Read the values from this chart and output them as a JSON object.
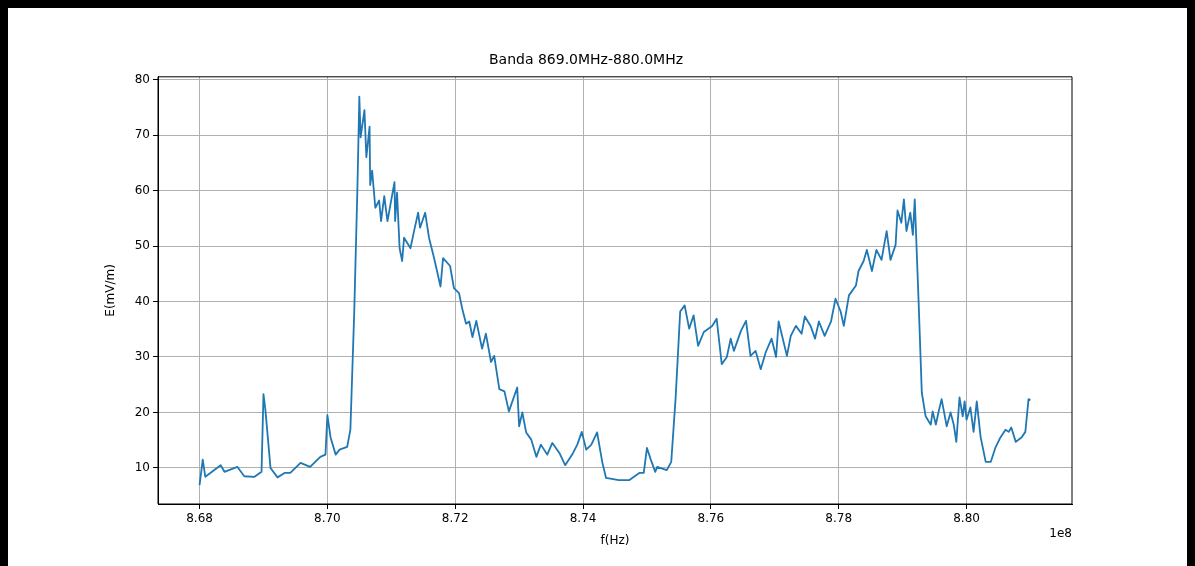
{
  "chart_data": {
    "type": "line",
    "title": "Banda 869.0MHz-880.0MHz",
    "xlabel": "f(Hz)",
    "ylabel": "E(mV/m)",
    "annotations": [
      "1e8"
    ],
    "xlim": [
      8.6735,
      8.8165
    ],
    "ylim": [
      3.5,
      80.5
    ],
    "xticks": [
      {
        "value": 8.68,
        "label": "8.68"
      },
      {
        "value": 8.7,
        "label": "8.70"
      },
      {
        "value": 8.72,
        "label": "8.72"
      },
      {
        "value": 8.74,
        "label": "8.74"
      },
      {
        "value": 8.76,
        "label": "8.76"
      },
      {
        "value": 8.78,
        "label": "8.78"
      },
      {
        "value": 8.8,
        "label": "8.80"
      }
    ],
    "yticks": [
      10,
      20,
      30,
      40,
      50,
      60,
      70,
      80
    ],
    "grid": true,
    "marker": "none",
    "line_style": "solid",
    "x": [
      8.68,
      8.6805,
      8.6809,
      8.6833,
      8.6839,
      8.6859,
      8.687,
      8.6886,
      8.6897,
      8.69,
      8.6903,
      8.6911,
      8.6922,
      8.6933,
      8.6942,
      8.6958,
      8.6973,
      8.6989,
      8.6997,
      8.7,
      8.7005,
      8.7013,
      8.7019,
      8.7031,
      8.7036,
      8.7042,
      8.7047,
      8.705,
      8.7052,
      8.7058,
      8.7061,
      8.7066,
      8.7067,
      8.707,
      8.7075,
      8.7081,
      8.7084,
      8.7089,
      8.7094,
      8.7105,
      8.7106,
      8.7109,
      8.7113,
      8.7117,
      8.712,
      8.713,
      8.7136,
      8.7142,
      8.7145,
      8.7153,
      8.7159,
      8.7167,
      8.7177,
      8.7181,
      8.7192,
      8.7198,
      8.7206,
      8.7211,
      8.7217,
      8.7222,
      8.7227,
      8.7233,
      8.7242,
      8.7248,
      8.7256,
      8.7261,
      8.7269,
      8.7277,
      8.7284,
      8.7297,
      8.73,
      8.7305,
      8.7311,
      8.7319,
      8.7327,
      8.7334,
      8.7344,
      8.7352,
      8.7363,
      8.7372,
      8.7383,
      8.7391,
      8.7398,
      8.7405,
      8.7413,
      8.7422,
      8.743,
      8.7436,
      8.7456,
      8.7472,
      8.7488,
      8.7495,
      8.75,
      8.7506,
      8.7513,
      8.7516,
      8.7531,
      8.7538,
      8.7545,
      8.7552,
      8.7559,
      8.7566,
      8.7573,
      8.758,
      8.7589,
      8.7602,
      8.7609,
      8.7617,
      8.7625,
      8.7631,
      8.7636,
      8.7647,
      8.7655,
      8.7662,
      8.767,
      8.7678,
      8.7686,
      8.7695,
      8.7702,
      8.7706,
      8.7719,
      8.7725,
      8.7733,
      8.7742,
      8.7747,
      8.7756,
      8.7763,
      8.7769,
      8.7778,
      8.7788,
      8.7795,
      8.7803,
      8.7808,
      8.7816,
      8.7827,
      8.7831,
      8.7839,
      8.7844,
      8.7852,
      8.7859,
      8.7867,
      8.7875,
      8.7881,
      8.7889,
      8.7892,
      8.7898,
      8.7902,
      8.7906,
      8.7912,
      8.7916,
      8.7919,
      8.7925,
      8.793,
      8.7936,
      8.7944,
      8.7947,
      8.7952,
      8.7956,
      8.7961,
      8.7969,
      8.7975,
      8.798,
      8.7984,
      8.7989,
      8.7994,
      8.7997,
      8.8,
      8.8006,
      8.8011,
      8.8016,
      8.8022,
      8.803,
      8.8038,
      8.8045,
      8.8053,
      8.8061,
      8.8066,
      8.807,
      8.8077,
      8.8086,
      8.8092,
      8.8097,
      8.81
    ],
    "series": [
      {
        "color": "#1f77b4",
        "values": [
          6.9,
          11.5,
          8.4,
          10.5,
          9.3,
          10.2,
          8.5,
          8.4,
          9.3,
          23.3,
          20.5,
          10.0,
          8.3,
          9.1,
          9.1,
          10.9,
          10.2,
          12.0,
          12.4,
          19.5,
          15.5,
          12.4,
          13.3,
          13.8,
          16.9,
          38.0,
          60.5,
          76.9,
          69.6,
          74.5,
          66.0,
          71.5,
          61.0,
          63.6,
          56.9,
          58.2,
          54.5,
          59.0,
          54.5,
          61.5,
          54.5,
          59.6,
          49.6,
          47.3,
          51.5,
          49.6,
          52.9,
          56.0,
          53.3,
          56.0,
          51.5,
          47.8,
          42.7,
          47.8,
          46.4,
          42.4,
          41.5,
          38.7,
          36.0,
          36.4,
          33.6,
          36.5,
          31.5,
          34.2,
          29.1,
          30.2,
          24.2,
          23.8,
          20.2,
          24.5,
          17.5,
          20.0,
          16.4,
          15.1,
          12.0,
          14.2,
          12.4,
          14.5,
          12.7,
          10.5,
          12.4,
          14.2,
          16.5,
          13.3,
          14.2,
          16.4,
          11.1,
          8.2,
          7.8,
          7.8,
          9.1,
          9.1,
          13.6,
          11.5,
          9.3,
          10.2,
          9.6,
          11.1,
          22.9,
          38.2,
          39.3,
          35.1,
          37.5,
          32.0,
          34.5,
          35.6,
          36.9,
          28.7,
          30.0,
          33.3,
          31.1,
          34.7,
          36.5,
          30.2,
          31.1,
          27.8,
          30.9,
          33.3,
          30.0,
          36.4,
          30.2,
          33.8,
          35.6,
          34.2,
          37.3,
          35.6,
          33.3,
          36.4,
          33.8,
          36.4,
          40.5,
          38.2,
          35.6,
          41.1,
          42.9,
          45.5,
          47.3,
          49.3,
          45.5,
          49.3,
          47.5,
          52.7,
          47.5,
          50.2,
          56.4,
          54.2,
          58.4,
          52.7,
          56.0,
          52.0,
          58.4,
          40.0,
          23.6,
          19.3,
          17.8,
          20.2,
          17.8,
          20.0,
          22.4,
          17.5,
          20.0,
          17.8,
          14.7,
          22.7,
          19.3,
          22.0,
          18.7,
          20.9,
          16.5,
          22.0,
          15.6,
          11.1,
          11.1,
          13.6,
          15.5,
          16.9,
          16.5,
          17.3,
          14.7,
          15.5,
          16.5,
          22.4,
          22.2
        ]
      }
    ]
  }
}
